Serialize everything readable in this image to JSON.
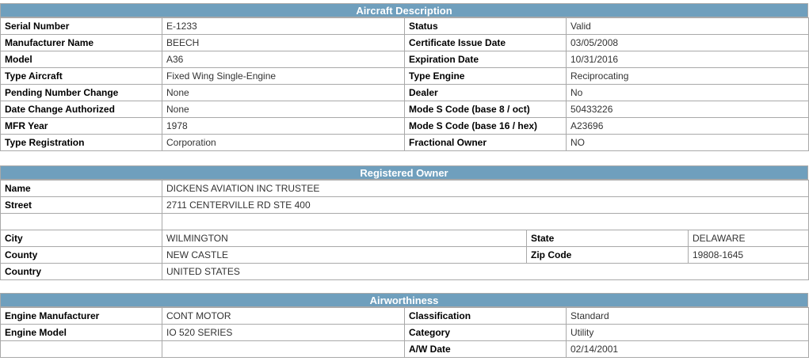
{
  "aircraft": {
    "header": "Aircraft Description",
    "rows": [
      {
        "l1": "Serial Number",
        "v1": "E-1233",
        "l2": "Status",
        "v2": "Valid"
      },
      {
        "l1": "Manufacturer Name",
        "v1": "BEECH",
        "l2": "Certificate Issue Date",
        "v2": "03/05/2008"
      },
      {
        "l1": "Model",
        "v1": "A36",
        "l2": "Expiration Date",
        "v2": "10/31/2016"
      },
      {
        "l1": "Type Aircraft",
        "v1": "Fixed Wing Single-Engine",
        "l2": "Type Engine",
        "v2": "Reciprocating"
      },
      {
        "l1": "Pending Number Change",
        "v1": "None",
        "l2": "Dealer",
        "v2": "No"
      },
      {
        "l1": "Date Change Authorized",
        "v1": "None",
        "l2": "Mode S Code (base 8 / oct)",
        "v2": "50433226"
      },
      {
        "l1": "MFR Year",
        "v1": "1978",
        "l2": "Mode S Code (base 16 / hex)",
        "v2": "A23696"
      },
      {
        "l1": "Type Registration",
        "v1": "Corporation",
        "l2": "Fractional Owner",
        "v2": "NO"
      }
    ]
  },
  "owner": {
    "header": "Registered Owner",
    "name_label": "Name",
    "name_value": "DICKENS AVIATION INC TRUSTEE",
    "street_label": "Street",
    "street_value": "2711 CENTERVILLE RD STE 400",
    "street2_value": "",
    "city_label": "City",
    "city_value": "WILMINGTON",
    "state_label": "State",
    "state_value": "DELAWARE",
    "county_label": "County",
    "county_value": "NEW CASTLE",
    "zip_label": "Zip Code",
    "zip_value": "19808-1645",
    "country_label": "Country",
    "country_value": "UNITED STATES"
  },
  "airworthiness": {
    "header": "Airworthiness",
    "rows": [
      {
        "l1": "Engine Manufacturer",
        "v1": "CONT MOTOR",
        "l2": "Classification",
        "v2": "Standard"
      },
      {
        "l1": "Engine Model",
        "v1": "IO 520 SERIES",
        "l2": "Category",
        "v2": "Utility"
      },
      {
        "l1": "",
        "v1": "",
        "l2": "A/W Date",
        "v2": "02/14/2001"
      }
    ]
  },
  "colors": {
    "header_bg": "#6f9fbd",
    "border": "#a9a9a9"
  }
}
